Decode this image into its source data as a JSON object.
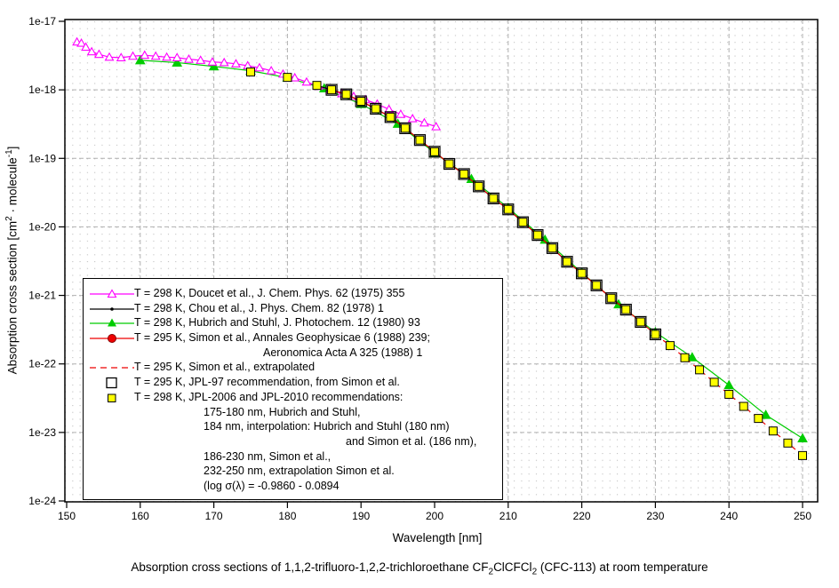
{
  "page": {
    "background": "#ffffff",
    "caption_parts": [
      {
        "t": "Absorption cross sections of 1,1,2-trifluoro-1,2,2-trichloroethane CF"
      },
      {
        "s": "2"
      },
      {
        "t": "ClCFCl"
      },
      {
        "s": "2"
      },
      {
        "t": " (CFC-113) at room temperature"
      }
    ]
  },
  "chart": {
    "xlabel": "Wavelength [nm]",
    "ylabel_parts": [
      {
        "t": "Absorption cross section [cm"
      },
      {
        "p": "2"
      },
      {
        "t": " · molecule"
      },
      {
        "p": "-1"
      },
      {
        "t": "]"
      }
    ],
    "x_ticks": [
      150,
      160,
      170,
      180,
      190,
      200,
      210,
      220,
      230,
      240,
      250
    ],
    "y_tick_labels": [
      "1e-17",
      "1e-18",
      "1e-19",
      "1e-20",
      "1e-21",
      "1e-22",
      "1e-23",
      "1e-24"
    ],
    "colors": {
      "doucet": "#ff00ff",
      "chou": "#000000",
      "hubrich": "#00cc00",
      "simon": "#ee0000",
      "simon_dark": "#880000",
      "jpl97": "#000000",
      "jpl2006_fill": "#ffff00",
      "grid_major": "#b0b0b0",
      "grid_minor": "#c0c0c0",
      "border": "#000000"
    }
  },
  "chart_data": {
    "type": "line",
    "title": "",
    "xlabel": "Wavelength [nm]",
    "ylabel": "Absorption cross section [cm2 · molecule-1]",
    "x_range_nm": [
      150,
      250
    ],
    "y_log10_range": [
      -24,
      -17
    ],
    "y_scale": "log",
    "grid": "major-dashed, minor-dotted",
    "legend_position": "lower-left-inside",
    "series": [
      {
        "id": "doucet",
        "name": "T = 298 K, Doucet et al., J. Chem. Phys. 62 (1975) 355",
        "color": "#ff00ff",
        "marker": "triangle-open",
        "line": "solid",
        "points": [
          [
            151.4,
            5e-18
          ],
          [
            152.0,
            4.8e-18
          ],
          [
            152.6,
            4.2e-18
          ],
          [
            153.4,
            3.6e-18
          ],
          [
            154.4,
            3.3e-18
          ],
          [
            155.8,
            3e-18
          ],
          [
            157.4,
            2.95e-18
          ],
          [
            159.0,
            3.1e-18
          ],
          [
            160.6,
            3.2e-18
          ],
          [
            162.1,
            3.1e-18
          ],
          [
            163.6,
            3e-18
          ],
          [
            165.0,
            2.95e-18
          ],
          [
            166.6,
            2.8e-18
          ],
          [
            168.2,
            2.7e-18
          ],
          [
            169.8,
            2.55e-18
          ],
          [
            171.4,
            2.5e-18
          ],
          [
            173.0,
            2.4e-18
          ],
          [
            174.6,
            2.25e-18
          ],
          [
            176.2,
            2.1e-18
          ],
          [
            177.8,
            1.9e-18
          ],
          [
            179.4,
            1.7e-18
          ],
          [
            181.0,
            1.5e-18
          ],
          [
            182.6,
            1.3e-18
          ],
          [
            184.2,
            1.13e-18
          ],
          [
            185.8,
            9.9e-19
          ],
          [
            187.4,
            8.8e-19
          ],
          [
            189.0,
            8e-19
          ],
          [
            190.6,
            7.2e-19
          ],
          [
            192.2,
            6.2e-19
          ],
          [
            193.8,
            5.2e-19
          ],
          [
            195.4,
            4.4e-19
          ],
          [
            197.0,
            3.8e-19
          ],
          [
            198.6,
            3.3e-19
          ],
          [
            200.2,
            2.9e-19
          ]
        ]
      },
      {
        "id": "chou",
        "name": "T = 298 K, Chou et al., J. Phys. Chem. 82 (1978) 1",
        "color": "#000000",
        "marker": "dot",
        "line": "solid",
        "points": [
          [
            184,
            1.16e-18
          ],
          [
            186,
            1e-18
          ],
          [
            188,
            8.6e-19
          ],
          [
            190,
            6.8e-19
          ],
          [
            192,
            5.3e-19
          ],
          [
            194,
            4e-19
          ],
          [
            196,
            2.75e-19
          ],
          [
            198,
            1.85e-19
          ],
          [
            200,
            1.25e-19
          ],
          [
            202,
            8.3e-20
          ],
          [
            204,
            5.9e-20
          ],
          [
            206,
            3.9e-20
          ],
          [
            208,
            2.6e-20
          ],
          [
            210,
            1.8e-20
          ],
          [
            212,
            1.17e-20
          ],
          [
            214,
            7.6e-21
          ],
          [
            216,
            4.9e-21
          ],
          [
            218,
            3.1e-21
          ],
          [
            220,
            2.1e-21
          ],
          [
            222,
            1.4e-21
          ],
          [
            224,
            9.1e-22
          ],
          [
            226,
            6.2e-22
          ]
        ]
      },
      {
        "id": "hubrich",
        "name": "T = 298 K, Hubrich and Stuhl, J. Photochem. 12 (1980) 93",
        "color": "#00cc00",
        "marker": "triangle-filled",
        "line": "solid",
        "points": [
          [
            160,
            2.7e-18
          ],
          [
            165,
            2.5e-18
          ],
          [
            170,
            2.2e-18
          ],
          [
            175,
            1.9e-18
          ],
          [
            180,
            1.5e-18
          ],
          [
            185,
            1.05e-18
          ],
          [
            190,
            6.2e-19
          ],
          [
            195,
            3.2e-19
          ],
          [
            200,
            1.2e-19
          ],
          [
            205,
            5e-20
          ],
          [
            210,
            1.9e-20
          ],
          [
            215,
            6.5e-21
          ],
          [
            220,
            2.15e-21
          ],
          [
            225,
            7.4e-22
          ],
          [
            230,
            2.9e-22
          ],
          [
            235,
            1.25e-22
          ],
          [
            240,
            4.9e-23
          ],
          [
            245,
            1.8e-23
          ],
          [
            250,
            8.2e-24
          ]
        ]
      },
      {
        "id": "simon",
        "name": "T = 295 K, Simon et al., Annales Geophysicae 6 (1988) 239; Aeronomica Acta A 325 (1988) 1",
        "color": "#ee0000",
        "marker": "circle-filled",
        "line": "solid",
        "points": [
          [
            186,
            1e-18
          ],
          [
            188,
            8.6e-19
          ],
          [
            190,
            6.8e-19
          ],
          [
            192,
            5.3e-19
          ],
          [
            194,
            4e-19
          ],
          [
            196,
            2.75e-19
          ],
          [
            198,
            1.85e-19
          ],
          [
            200,
            1.25e-19
          ],
          [
            202,
            8.3e-20
          ],
          [
            204,
            5.9e-20
          ],
          [
            206,
            3.9e-20
          ],
          [
            208,
            2.6e-20
          ],
          [
            210,
            1.8e-20
          ],
          [
            212,
            1.17e-20
          ],
          [
            214,
            7.6e-21
          ],
          [
            216,
            4.9e-21
          ],
          [
            218,
            3.1e-21
          ],
          [
            220,
            2.1e-21
          ],
          [
            222,
            1.4e-21
          ],
          [
            224,
            9.1e-22
          ],
          [
            226,
            6.2e-22
          ],
          [
            228,
            4.1e-22
          ],
          [
            230,
            2.7e-22
          ]
        ]
      },
      {
        "id": "simon_extrapolated",
        "name": "T = 295 K, Simon et al., extrapolated",
        "color": "#ee0000",
        "marker": "none",
        "line": "dashed",
        "extrapolation_formula": "log sigma(lambda) = -0.9860 - 0.0894 lambda",
        "points": [
          [
            230,
            2.7e-22
          ],
          [
            232,
            1.85e-22
          ],
          [
            234,
            1.23e-22
          ],
          [
            236,
            8.2e-23
          ],
          [
            238,
            5.4e-23
          ],
          [
            240,
            3.6e-23
          ],
          [
            242,
            2.4e-23
          ],
          [
            244,
            1.6e-23
          ],
          [
            246,
            1.05e-23
          ],
          [
            248,
            7e-24
          ],
          [
            250,
            4.6e-24
          ]
        ]
      },
      {
        "id": "jpl97",
        "name": "T = 295 K, JPL-97 recommendation, from Simon et al.",
        "color": "#000000",
        "marker": "square-open",
        "line": "none",
        "points": [
          [
            186,
            1e-18
          ],
          [
            188,
            8.6e-19
          ],
          [
            190,
            6.8e-19
          ],
          [
            192,
            5.3e-19
          ],
          [
            194,
            4e-19
          ],
          [
            196,
            2.75e-19
          ],
          [
            198,
            1.85e-19
          ],
          [
            200,
            1.25e-19
          ],
          [
            202,
            8.3e-20
          ],
          [
            204,
            5.9e-20
          ],
          [
            206,
            3.9e-20
          ],
          [
            208,
            2.6e-20
          ],
          [
            210,
            1.8e-20
          ],
          [
            212,
            1.17e-20
          ],
          [
            214,
            7.6e-21
          ],
          [
            216,
            4.9e-21
          ],
          [
            218,
            3.1e-21
          ],
          [
            220,
            2.1e-21
          ],
          [
            222,
            1.4e-21
          ],
          [
            224,
            9.1e-22
          ],
          [
            226,
            6.2e-22
          ],
          [
            228,
            4.1e-22
          ],
          [
            230,
            2.7e-22
          ]
        ]
      },
      {
        "id": "jpl2006",
        "name": "T = 298 K, JPL-2006 and JPL-2010 recommendations",
        "color": "#ffff00",
        "marker": "square-filled",
        "line": "none",
        "points": [
          [
            175,
            1.82e-18
          ],
          [
            180,
            1.52e-18
          ],
          [
            184,
            1.16e-18
          ],
          [
            186,
            1e-18
          ],
          [
            188,
            8.6e-19
          ],
          [
            190,
            6.8e-19
          ],
          [
            192,
            5.3e-19
          ],
          [
            194,
            4e-19
          ],
          [
            196,
            2.75e-19
          ],
          [
            198,
            1.85e-19
          ],
          [
            200,
            1.25e-19
          ],
          [
            202,
            8.3e-20
          ],
          [
            204,
            5.9e-20
          ],
          [
            206,
            3.9e-20
          ],
          [
            208,
            2.6e-20
          ],
          [
            210,
            1.8e-20
          ],
          [
            212,
            1.17e-20
          ],
          [
            214,
            7.6e-21
          ],
          [
            216,
            4.9e-21
          ],
          [
            218,
            3.1e-21
          ],
          [
            220,
            2.1e-21
          ],
          [
            222,
            1.4e-21
          ],
          [
            224,
            9.1e-22
          ],
          [
            226,
            6.2e-22
          ],
          [
            228,
            4.1e-22
          ],
          [
            230,
            2.7e-22
          ],
          [
            232,
            1.85e-22
          ],
          [
            234,
            1.23e-22
          ],
          [
            236,
            8.2e-23
          ],
          [
            238,
            5.4e-23
          ],
          [
            240,
            3.6e-23
          ],
          [
            242,
            2.4e-23
          ],
          [
            244,
            1.6e-23
          ],
          [
            246,
            1.05e-23
          ],
          [
            248,
            7e-24
          ],
          [
            250,
            4.6e-24
          ]
        ]
      }
    ]
  },
  "legend": {
    "items": [
      {
        "marker": "doucet",
        "lines": [
          {
            "text": "T = 298 K, Doucet et al., J. Chem. Phys. 62 (1975) 355",
            "indent": 57
          }
        ]
      },
      {
        "marker": "chou",
        "lines": [
          {
            "text": "T = 298 K, Chou et al., J. Phys. Chem. 82 (1978) 1",
            "indent": 57
          }
        ]
      },
      {
        "marker": "hubrich",
        "lines": [
          {
            "text": "T = 298 K, Hubrich and Stuhl, J. Photochem. 12 (1980) 93",
            "indent": 57
          }
        ]
      },
      {
        "marker": "simon",
        "lines": [
          {
            "text": "T = 295 K, Simon et al., Annales Geophysicae 6 (1988) 239;",
            "indent": 57
          },
          {
            "text": "Aeronomica Acta A 325 (1988) 1",
            "indent": 202
          }
        ]
      },
      {
        "marker": "simon_extrapolated",
        "lines": [
          {
            "text": "T = 295 K, Simon et al., extrapolated",
            "indent": 57
          }
        ]
      },
      {
        "marker": "jpl97",
        "lines": [
          {
            "text": "T = 295 K, JPL-97 recommendation, from Simon et al.",
            "indent": 57
          }
        ]
      },
      {
        "marker": "jpl2006",
        "lines": [
          {
            "text": "T = 298 K, JPL-2006 and JPL-2010 recommendations:",
            "indent": 57
          },
          {
            "text": "175-180 nm, Hubrich and Stuhl,",
            "indent": 135
          },
          {
            "text": "184 nm, interpolation: Hubrich and Stuhl (180 nm)",
            "indent": 135
          },
          {
            "text": "and Simon et al. (186 nm),",
            "indent": 295
          },
          {
            "text": "186-230 nm, Simon et al.,",
            "indent": 135
          },
          {
            "text": "232-250 nm, extrapolation Simon et al.",
            "indent": 135
          },
          {
            "text": "(log σ(λ) = -0.9860 - 0.0894",
            "indent": 135
          }
        ]
      }
    ]
  }
}
